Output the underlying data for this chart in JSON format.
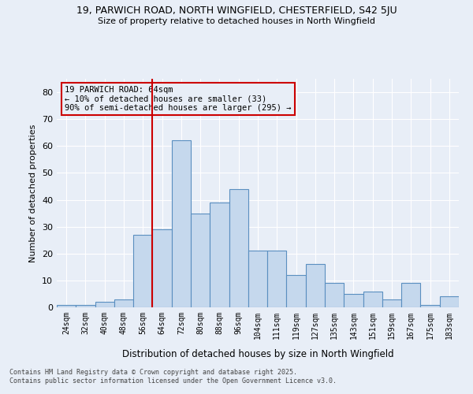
{
  "title1": "19, PARWICH ROAD, NORTH WINGFIELD, CHESTERFIELD, S42 5JU",
  "title2": "Size of property relative to detached houses in North Wingfield",
  "xlabel": "Distribution of detached houses by size in North Wingfield",
  "ylabel": "Number of detached properties",
  "footnote1": "Contains HM Land Registry data © Crown copyright and database right 2025.",
  "footnote2": "Contains public sector information licensed under the Open Government Licence v3.0.",
  "categories": [
    "24sqm",
    "32sqm",
    "40sqm",
    "48sqm",
    "56sqm",
    "64sqm",
    "72sqm",
    "80sqm",
    "88sqm",
    "96sqm",
    "104sqm",
    "111sqm",
    "119sqm",
    "127sqm",
    "135sqm",
    "143sqm",
    "151sqm",
    "159sqm",
    "167sqm",
    "175sqm",
    "183sqm"
  ],
  "values": [
    1,
    1,
    2,
    3,
    27,
    29,
    62,
    35,
    39,
    44,
    21,
    21,
    12,
    16,
    9,
    5,
    6,
    3,
    9,
    1,
    4
  ],
  "bar_color": "#c5d8ed",
  "bar_edge_color": "#5a8fc0",
  "background_color": "#e8eef7",
  "grid_color": "#ffffff",
  "vline_color": "#cc0000",
  "annotation_text": "19 PARWICH ROAD: 64sqm\n← 10% of detached houses are smaller (33)\n90% of semi-detached houses are larger (295) →",
  "annotation_box_color": "#cc0000",
  "ylim": [
    0,
    85
  ],
  "yticks": [
    0,
    10,
    20,
    30,
    40,
    50,
    60,
    70,
    80
  ]
}
